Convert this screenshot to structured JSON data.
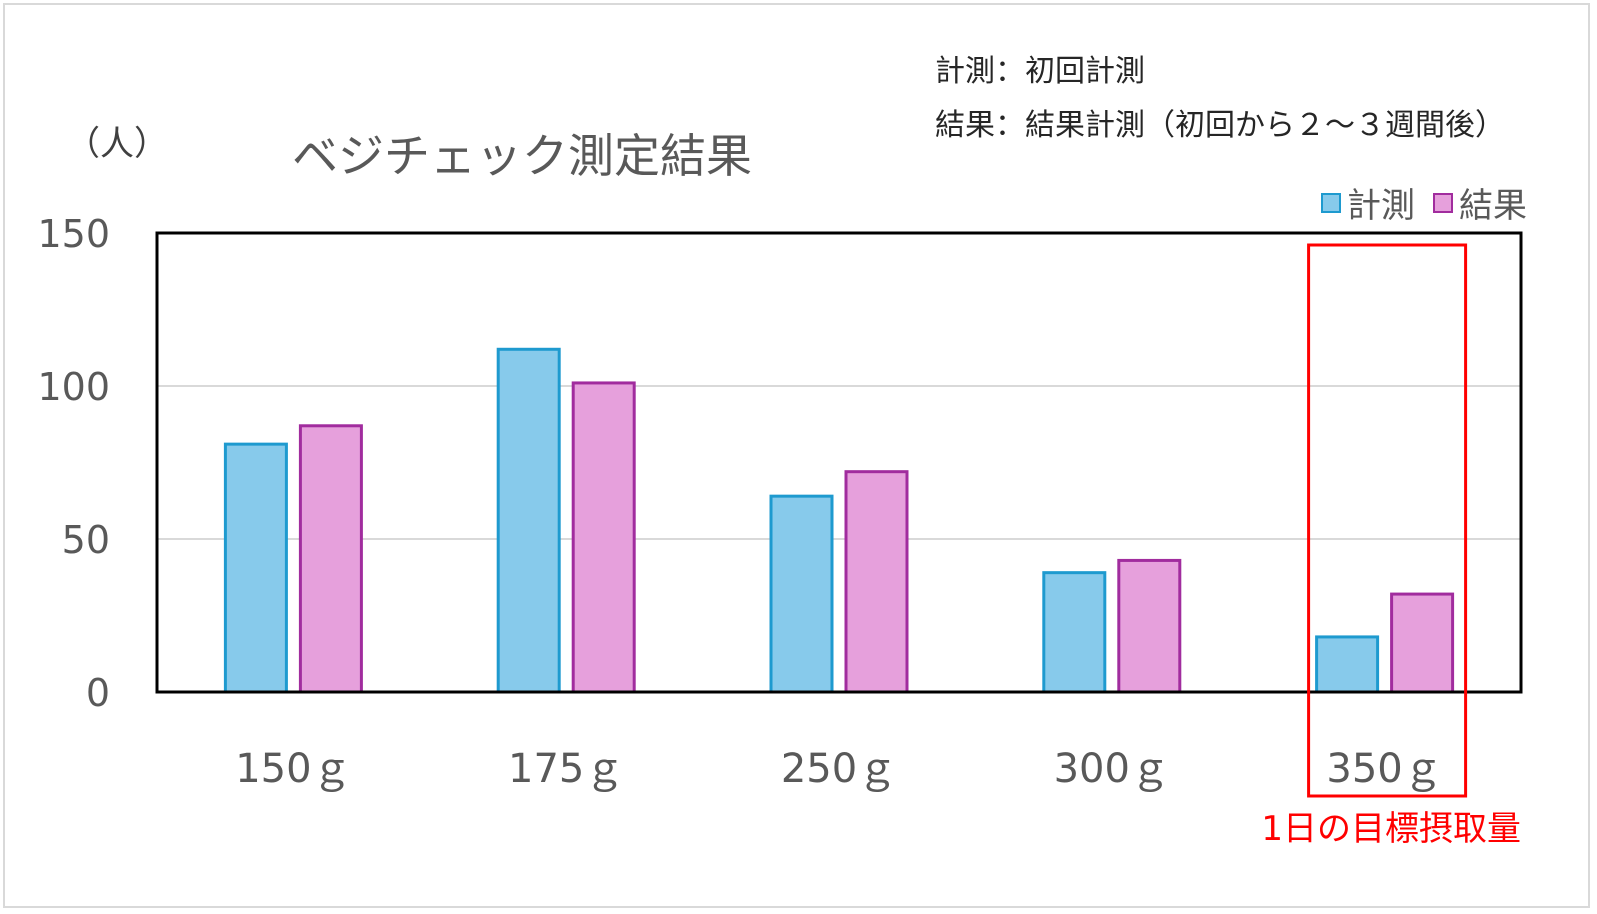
{
  "chart_data": {
    "type": "bar",
    "title": "ベジチェック測定結果",
    "ylabel": "（人）",
    "categories": [
      "150ｇ",
      "175ｇ",
      "250ｇ",
      "300ｇ",
      "350ｇ"
    ],
    "series": [
      {
        "name": "計測",
        "values": [
          81,
          112,
          64,
          39,
          18
        ],
        "fill": "#87CAEB",
        "stroke": "#1E9ACF"
      },
      {
        "name": "結果",
        "values": [
          87,
          101,
          72,
          43,
          32
        ],
        "fill": "#E6A0DC",
        "stroke": "#A12C9E"
      }
    ],
    "ylim": [
      0,
      150
    ],
    "yticks": [
      "0",
      "50",
      "100",
      "150"
    ],
    "grid": true,
    "legend": "top-right",
    "notes": [
      "計測：初回計測",
      "結果：結果計測（初回から２～３週間後）"
    ],
    "highlight": {
      "category": "350ｇ",
      "label": "1日の目標摂取量",
      "color": "#FF0000"
    }
  }
}
